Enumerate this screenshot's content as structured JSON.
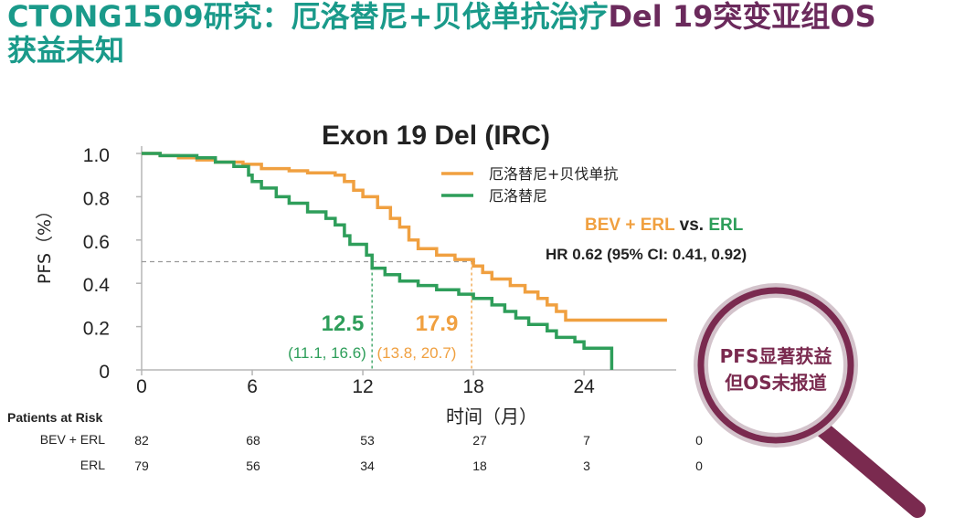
{
  "slide": {
    "title_part1": "CTONG1509研究：厄洛替尼+贝伐单抗治疗",
    "title_part2": "Del 19突变亚组OS",
    "title_part3": "获益未知",
    "color_teal": "#1a9a8a",
    "color_purple": "#6b2a5c"
  },
  "chart_data": {
    "type": "line",
    "title": "Exon 19 Del (IRC)",
    "xlabel": "时间（月）",
    "ylabel": "PFS（%）",
    "xlim": [
      0,
      29
    ],
    "ylim": [
      0,
      1.0
    ],
    "x_ticks": [
      "0",
      "6",
      "12",
      "18",
      "24"
    ],
    "x_tick_values": [
      0,
      6,
      12,
      18,
      24
    ],
    "y_ticks": [
      "0",
      "0.2",
      "0.4",
      "0.6",
      "0.8",
      "1.0"
    ],
    "y_tick_values": [
      0,
      0.2,
      0.4,
      0.6,
      0.8,
      1.0
    ],
    "grid": false,
    "legend_placement": "top-right",
    "series": [
      {
        "name": "厄洛替尼+贝伐单抗",
        "color": "#f0a040",
        "points": [
          [
            0,
            1.0
          ],
          [
            1,
            0.99
          ],
          [
            2,
            0.98
          ],
          [
            3,
            0.97
          ],
          [
            4,
            0.96
          ],
          [
            5.5,
            0.95
          ],
          [
            6.5,
            0.93
          ],
          [
            8,
            0.92
          ],
          [
            9,
            0.91
          ],
          [
            10.5,
            0.9
          ],
          [
            11,
            0.87
          ],
          [
            11.5,
            0.83
          ],
          [
            12,
            0.8
          ],
          [
            12.8,
            0.75
          ],
          [
            13.5,
            0.7
          ],
          [
            14,
            0.66
          ],
          [
            14.5,
            0.6
          ],
          [
            15,
            0.56
          ],
          [
            16,
            0.53
          ],
          [
            17,
            0.51
          ],
          [
            18,
            0.48
          ],
          [
            18.5,
            0.45
          ],
          [
            19,
            0.42
          ],
          [
            20,
            0.39
          ],
          [
            20.8,
            0.36
          ],
          [
            21.5,
            0.33
          ],
          [
            22,
            0.3
          ],
          [
            22.5,
            0.27
          ],
          [
            23,
            0.23
          ],
          [
            28.5,
            0.23
          ]
        ]
      },
      {
        "name": "厄洛替尼",
        "color": "#2e9e5a",
        "points": [
          [
            0,
            1.0
          ],
          [
            1,
            0.99
          ],
          [
            2,
            0.99
          ],
          [
            3,
            0.98
          ],
          [
            4,
            0.96
          ],
          [
            5,
            0.94
          ],
          [
            5.8,
            0.9
          ],
          [
            6,
            0.87
          ],
          [
            6.5,
            0.84
          ],
          [
            7.3,
            0.8
          ],
          [
            8,
            0.77
          ],
          [
            9,
            0.73
          ],
          [
            10,
            0.7
          ],
          [
            10.5,
            0.67
          ],
          [
            11,
            0.62
          ],
          [
            11.3,
            0.58
          ],
          [
            12.2,
            0.53
          ],
          [
            12.5,
            0.47
          ],
          [
            13.2,
            0.44
          ],
          [
            14,
            0.41
          ],
          [
            15,
            0.39
          ],
          [
            16,
            0.37
          ],
          [
            17.2,
            0.35
          ],
          [
            18,
            0.33
          ],
          [
            19,
            0.3
          ],
          [
            19.7,
            0.27
          ],
          [
            20.3,
            0.24
          ],
          [
            21,
            0.21
          ],
          [
            22,
            0.18
          ],
          [
            22.5,
            0.15
          ],
          [
            23.5,
            0.13
          ],
          [
            24,
            0.1
          ],
          [
            25.5,
            0.1
          ],
          [
            25.5,
            0
          ]
        ]
      }
    ],
    "reference_line_y": 0.5,
    "annotations": [
      {
        "median": "12.5",
        "ci": "(11.1, 16.6)",
        "x": 12.5,
        "color": "#2e9e5a"
      },
      {
        "median": "17.9",
        "ci": "(13.8, 20.7)",
        "x": 17.9,
        "color": "#f0a040"
      }
    ],
    "comparison_parts": [
      "BEV + ERL",
      " vs. ",
      "ERL"
    ],
    "hr_text": "HR 0.62 (95% CI: 0.41, 0.92)",
    "risk_table": {
      "header": "Patients at Risk",
      "rows": [
        {
          "label": "BEV + ERL",
          "values": [
            "82",
            "68",
            "53",
            "27",
            "7",
            "0"
          ]
        },
        {
          "label": "ERL",
          "values": [
            "79",
            "56",
            "34",
            "18",
            "3",
            "0"
          ]
        }
      ]
    },
    "callout": {
      "line1": "PFS显著获益",
      "line2": "但OS未报道",
      "color": "#7a2a4f"
    }
  }
}
